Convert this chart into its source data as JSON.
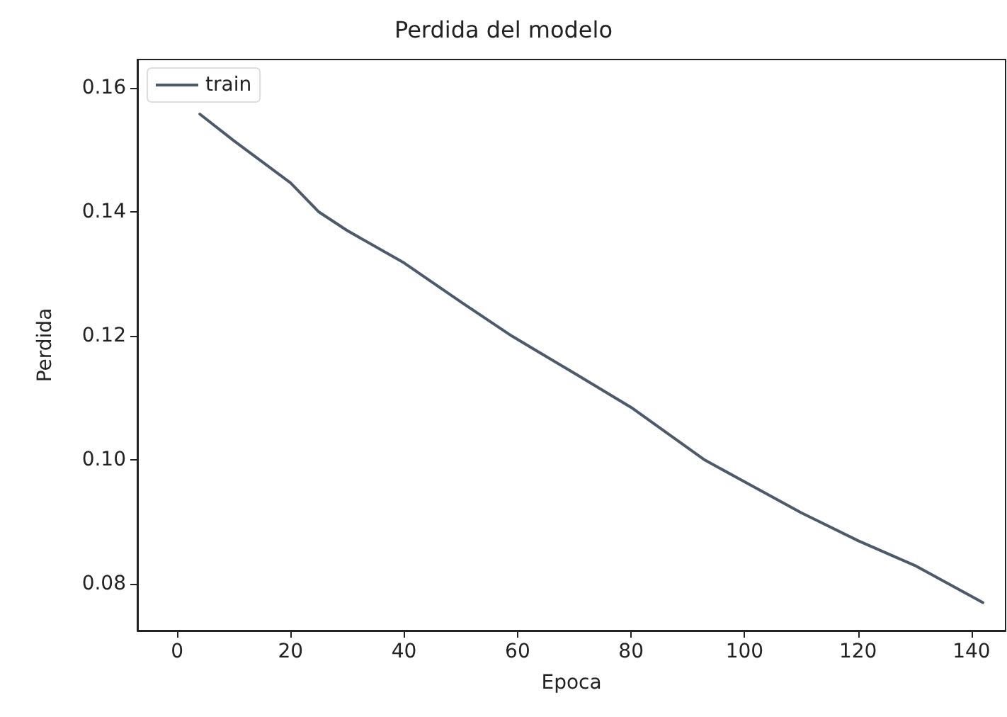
{
  "chart_data": {
    "type": "line",
    "title": "Perdida del modelo",
    "xlabel": "Epoca",
    "ylabel": "Perdida",
    "xlim": [
      -7,
      146
    ],
    "xticks": [
      0,
      20,
      40,
      60,
      80,
      100,
      120,
      140
    ],
    "ylim": [
      0.0725,
      0.1646
    ],
    "yticks": [
      {
        "value": 0.08,
        "label": "0.08"
      },
      {
        "value": 0.1,
        "label": "0.10"
      },
      {
        "value": 0.12,
        "label": "0.12"
      },
      {
        "value": 0.14,
        "label": "0.14"
      },
      {
        "value": 0.16,
        "label": "0.16"
      }
    ],
    "legend": "top left",
    "grid": false,
    "series": [
      {
        "name": "train",
        "color": "#4c5a6a",
        "x": [
          4,
          10,
          20,
          25,
          30,
          40,
          50,
          59,
          70,
          80,
          93,
          100,
          110,
          120,
          130,
          142
        ],
        "values": [
          0.1558,
          0.1515,
          0.1447,
          0.14,
          0.137,
          0.1318,
          0.1255,
          0.12,
          0.114,
          0.1085,
          0.1,
          0.0965,
          0.0915,
          0.087,
          0.083,
          0.077
        ]
      }
    ]
  }
}
